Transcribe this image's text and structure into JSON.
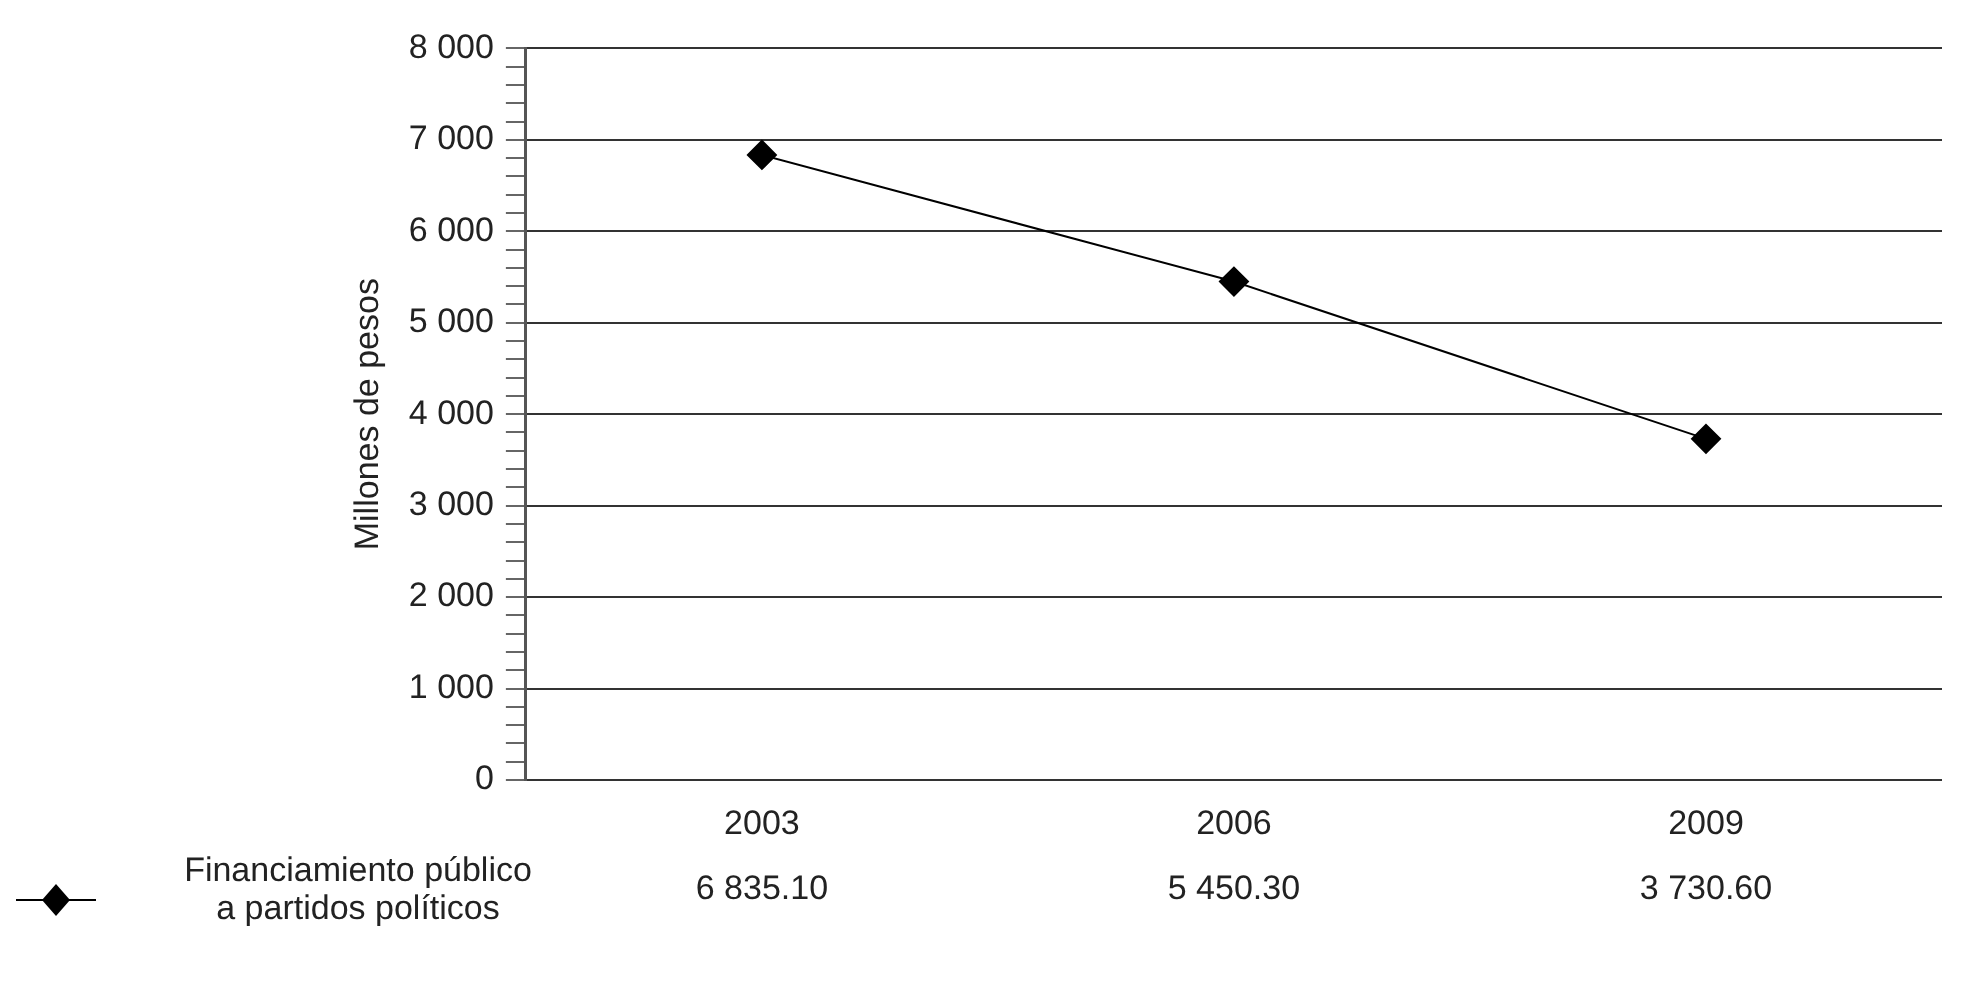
{
  "chart_data": {
    "type": "line",
    "ylabel": "Millones de pesos",
    "categories": [
      "2003",
      "2006",
      "2009"
    ],
    "series": [
      {
        "name": "Financiamiento público a partidos políticos",
        "color": "#000000",
        "values": [
          6835.1,
          5450.3,
          3730.6
        ],
        "value_labels": [
          "6 835.10",
          "5 450.30",
          "3 730.60"
        ]
      }
    ],
    "ylim": [
      0,
      8000
    ],
    "yticks": [
      {
        "value": 0,
        "label": "0"
      },
      {
        "value": 200,
        "label": null
      },
      {
        "value": 400,
        "label": null
      },
      {
        "value": 600,
        "label": null
      },
      {
        "value": 800,
        "label": null
      },
      {
        "value": 1000,
        "label": "1 000"
      },
      {
        "value": 1200,
        "label": null
      },
      {
        "value": 1400,
        "label": null
      },
      {
        "value": 1600,
        "label": null
      },
      {
        "value": 1800,
        "label": null
      },
      {
        "value": 2000,
        "label": "2 000"
      },
      {
        "value": 2200,
        "label": null
      },
      {
        "value": 2400,
        "label": null
      },
      {
        "value": 2600,
        "label": null
      },
      {
        "value": 2800,
        "label": null
      },
      {
        "value": 3000,
        "label": "3 000"
      },
      {
        "value": 3200,
        "label": null
      },
      {
        "value": 3400,
        "label": null
      },
      {
        "value": 3600,
        "label": null
      },
      {
        "value": 3800,
        "label": null
      },
      {
        "value": 4000,
        "label": "4 000"
      },
      {
        "value": 4200,
        "label": null
      },
      {
        "value": 4400,
        "label": null
      },
      {
        "value": 4600,
        "label": null
      },
      {
        "value": 4800,
        "label": null
      },
      {
        "value": 5000,
        "label": "5 000"
      },
      {
        "value": 5200,
        "label": null
      },
      {
        "value": 5400,
        "label": null
      },
      {
        "value": 5600,
        "label": null
      },
      {
        "value": 5800,
        "label": null
      },
      {
        "value": 6000,
        "label": "6 000"
      },
      {
        "value": 6200,
        "label": null
      },
      {
        "value": 6400,
        "label": null
      },
      {
        "value": 6600,
        "label": null
      },
      {
        "value": 6800,
        "label": null
      },
      {
        "value": 7000,
        "label": "7 000"
      },
      {
        "value": 7200,
        "label": null
      },
      {
        "value": 7400,
        "label": null
      },
      {
        "value": 7600,
        "label": null
      },
      {
        "value": 7800,
        "label": null
      },
      {
        "value": 8000,
        "label": "8 000"
      }
    ],
    "grid": "y",
    "legend": "bottom left",
    "marker": "diamond",
    "line_style": "solid"
  }
}
